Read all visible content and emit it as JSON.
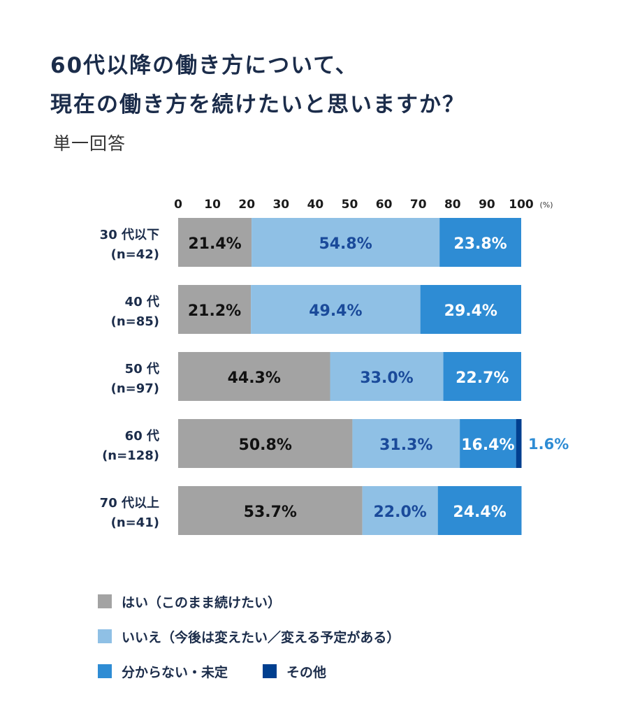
{
  "title_lines": [
    "60代以降の働き方について、",
    "現在の働き方を続けたいと思いますか？"
  ],
  "subtitle": "単一回答",
  "chart_data": {
    "type": "bar",
    "orientation": "horizontal-stacked",
    "unit_label": "(%)",
    "xlim": [
      0,
      100
    ],
    "ticks": [
      "0",
      "10",
      "20",
      "30",
      "40",
      "50",
      "60",
      "70",
      "80",
      "90",
      "100"
    ],
    "categories": [
      {
        "label": "30 代以下",
        "n": "(n=42)"
      },
      {
        "label": "40 代",
        "n": "(n=85)"
      },
      {
        "label": "50 代",
        "n": "(n=97)"
      },
      {
        "label": "60 代",
        "n": "(n=128)"
      },
      {
        "label": "70 代以上",
        "n": "(n=41)"
      }
    ],
    "series": [
      {
        "name": "はい（このまま続けたい）",
        "color": "#a3a3a3",
        "label_color": "#111111",
        "values": [
          21.4,
          21.2,
          44.3,
          50.8,
          53.7
        ]
      },
      {
        "name": "いいえ（今後は変えたい／変える予定がある）",
        "color": "#8fc0e5",
        "label_color": "#1a4a9a",
        "values": [
          54.8,
          49.4,
          33.0,
          31.3,
          22.0
        ]
      },
      {
        "name": "分からない・未定",
        "color": "#2e8cd4",
        "label_color": "#ffffff",
        "values": [
          23.8,
          29.4,
          22.7,
          16.4,
          24.4
        ]
      },
      {
        "name": "その他",
        "color": "#003f8f",
        "label_color": "#2e8cd4",
        "values": [
          0,
          0,
          0,
          1.6,
          0
        ]
      }
    ]
  }
}
